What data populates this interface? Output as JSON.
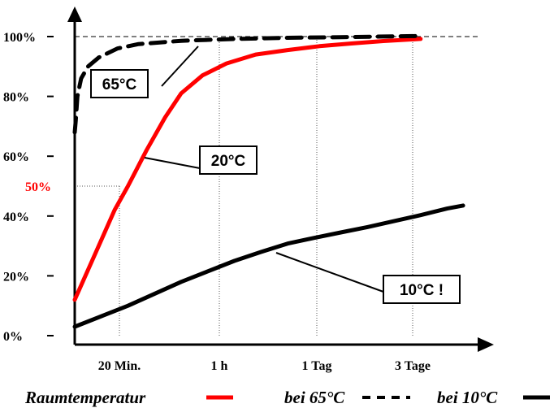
{
  "chart_data": {
    "type": "line",
    "title": "",
    "xlabel": "",
    "ylabel": "",
    "ylim": [
      0,
      100
    ],
    "grid": false,
    "x_ticks": [
      "20 Min.",
      "1 h",
      "1 Tag",
      "3 Tage"
    ],
    "y_ticks": [
      "0%",
      "20%",
      "40%",
      "60%",
      "80%",
      "100%"
    ],
    "y_highlight": {
      "label": "50%",
      "value": 50,
      "x_tick": "20 Min.",
      "color": "#ff0000"
    },
    "series": [
      {
        "name": "Raumtemperatur",
        "callout": "20°C",
        "color": "#ff0000",
        "dash": "solid",
        "points": [
          [
            0,
            12
          ],
          [
            0.4,
            28
          ],
          [
            0.75,
            42
          ],
          [
            1,
            50
          ],
          [
            1.35,
            62
          ],
          [
            1.7,
            73
          ],
          [
            2,
            81
          ],
          [
            2.4,
            87
          ],
          [
            2.85,
            91
          ],
          [
            3.4,
            94
          ],
          [
            4,
            95.5
          ],
          [
            4.6,
            96.8
          ],
          [
            5.2,
            97.7
          ],
          [
            5.8,
            98.5
          ],
          [
            6.5,
            99.2
          ]
        ]
      },
      {
        "name": "bei 65°C",
        "callout": "65°C",
        "color": "#000000",
        "dash": "dashed",
        "points": [
          [
            0,
            68
          ],
          [
            0.02,
            72
          ],
          [
            0.05,
            80
          ],
          [
            0.12,
            86
          ],
          [
            0.25,
            90
          ],
          [
            0.45,
            93
          ],
          [
            0.8,
            96
          ],
          [
            1.2,
            97.5
          ],
          [
            2,
            98.6
          ],
          [
            3,
            99.2
          ],
          [
            4,
            99.6
          ],
          [
            5,
            99.8
          ],
          [
            6.5,
            100.2
          ]
        ]
      },
      {
        "name": "bei 10°C",
        "callout": "10°C !",
        "color": "#000000",
        "dash": "solid",
        "points": [
          [
            0,
            3
          ],
          [
            1,
            10
          ],
          [
            2,
            18
          ],
          [
            3,
            25
          ],
          [
            3.5,
            28
          ],
          [
            4,
            30.8
          ],
          [
            4.5,
            32.7
          ],
          [
            5,
            34.5
          ],
          [
            5.5,
            36.3
          ],
          [
            6,
            38.3
          ],
          [
            6.5,
            40.3
          ],
          [
            7,
            42.5
          ],
          [
            7.3,
            43.5
          ]
        ]
      }
    ],
    "target_line": {
      "value": 100,
      "style": "dashed"
    }
  },
  "legend": {
    "raum_label": "Raumtemperatur",
    "bei65_label": "bei 65°C",
    "bei10_label": "bei 10°C"
  }
}
